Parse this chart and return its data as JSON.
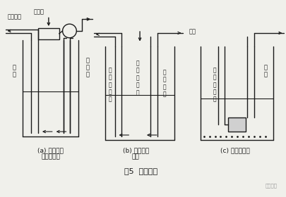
{
  "bg_color": "#f0f0eb",
  "line_color": "#1a1a1a",
  "title": "图5  消底方法",
  "label_a1": "(a) 应用导管",
  "label_a2": "吸泥泵方式",
  "label_b1": "(b) 空气升液",
  "label_b2": "方式",
  "label_c1": "(c) 泥浆泵方式",
  "top_label1": "接合器",
  "top_label2": "泥浆补偿",
  "air_label": "空气",
  "label_guide": "导\n管",
  "label_suction": "吸\n泥\n泵",
  "label_airlift": "空\n气\n升\n液\n排",
  "label_mudpipe": "泥\n管\n或\n导\n管",
  "label_airsoft": "空\n气\n软\n管",
  "label_subpump": "潜\n水\n泥\n浆\n泵",
  "label_softpipe": "软\n管",
  "watermark": "筑龙岩土"
}
